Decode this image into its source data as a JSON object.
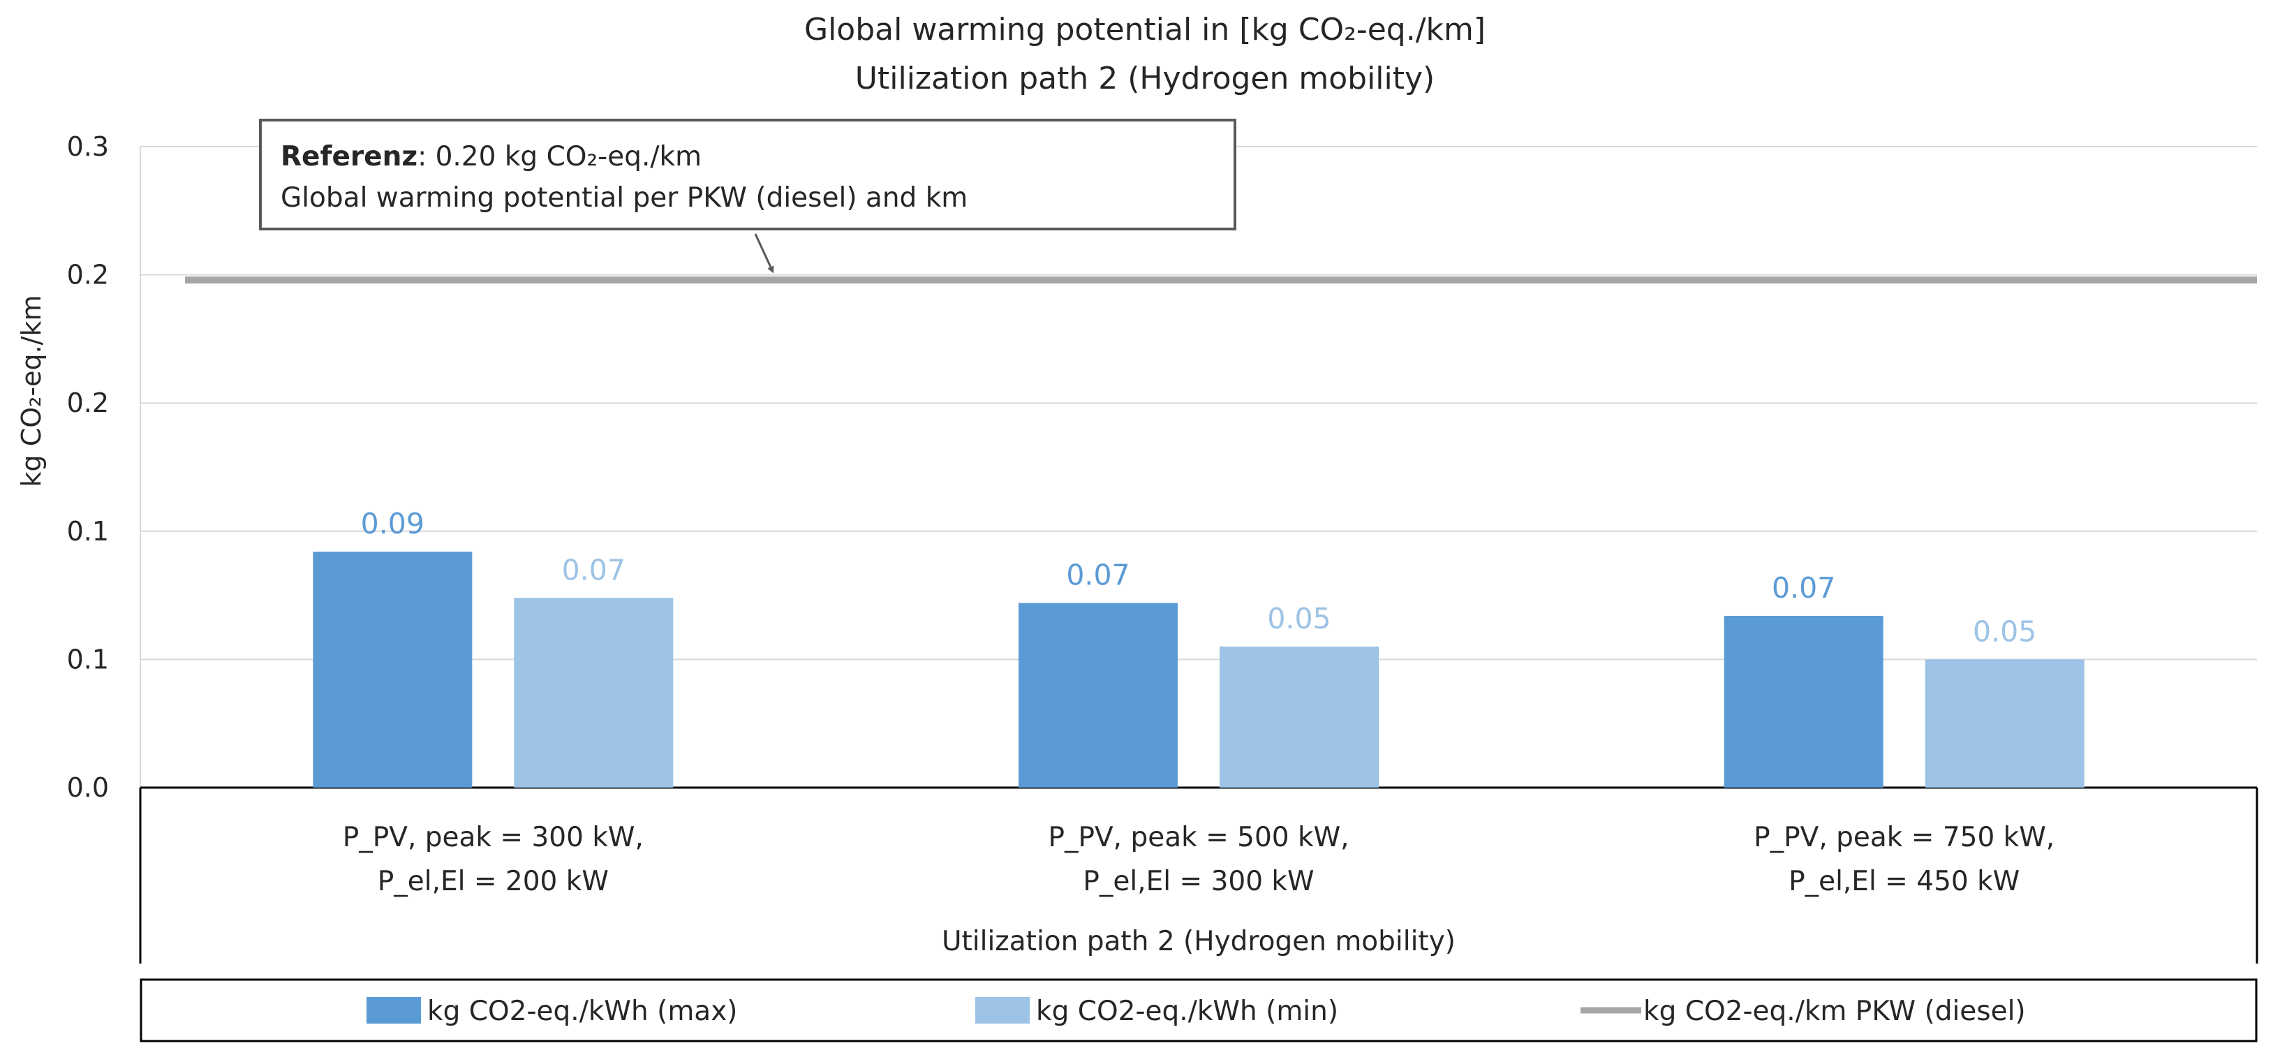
{
  "chart_data": {
    "type": "bar",
    "title_line1": "Global warming potential in  [kg CO₂-eq./km]",
    "title_line2": "Utilization path 2 (Hydrogen mobility)",
    "ylabel": "kg CO₂-eq./km",
    "xlabel": "Utilization path 2 (Hydrogen mobility)",
    "ylim": [
      0,
      0.25
    ],
    "grid": true,
    "y_tick_values": [
      0,
      0.05,
      0.1,
      0.15,
      0.2,
      0.25
    ],
    "y_tick_labels": [
      "0.0",
      "0.1",
      "0.1",
      "0.2",
      "0.2",
      "0.3"
    ],
    "categories": [
      [
        "P_PV, peak = 300 kW,",
        "P_el,El = 200 kW"
      ],
      [
        "P_PV, peak = 500 kW,",
        "P_el,El = 300 kW"
      ],
      [
        "P_PV, peak = 750 kW,",
        "P_el,El = 450 kW"
      ]
    ],
    "series": [
      {
        "name": "kg CO2-eq./kWh (max)",
        "color": "#5b9bd5",
        "values": [
          0.092,
          0.072,
          0.067
        ],
        "labels": [
          "0.09",
          "0.07",
          "0.07"
        ]
      },
      {
        "name": "kg CO2-eq./kWh (min)",
        "color": "#9dc3e6",
        "values": [
          0.074,
          0.055,
          0.05
        ],
        "labels": [
          "0.07",
          "0.05",
          "0.05"
        ]
      }
    ],
    "reference_line": {
      "name": "kg CO2-eq./km PKW (diesel)",
      "value": 0.198,
      "color": "#a6a6a6"
    },
    "annotation": {
      "bold": "Referenz",
      "line1_rest": ": 0.20 kg CO₂-eq./km",
      "line2": "Global warming potential per PKW (diesel) and km"
    },
    "legend_position": "bottom"
  }
}
